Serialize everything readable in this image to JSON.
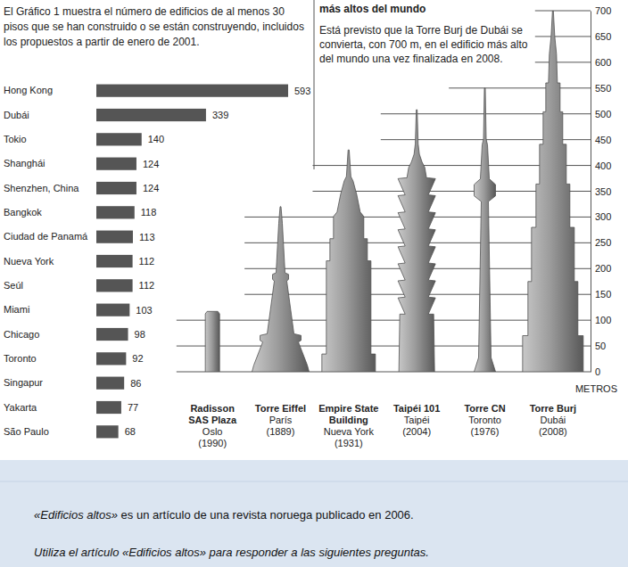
{
  "chart_data": [
    {
      "type": "bar",
      "orientation": "horizontal",
      "title": "El Gráfico 1 muestra el número de edificios de al menos 30 pisos que se han construido o se están construyendo, incluidos los propuestos a partir de enero de 2001.",
      "categories": [
        "Hong Kong",
        "Dubái",
        "Tokio",
        "Shanghái",
        "Shenzhen, China",
        "Bangkok",
        "Ciudad de Panamá",
        "Nueva York",
        "Seúl",
        "Miami",
        "Chicago",
        "Toronto",
        "Singapur",
        "Yakarta",
        "São Paulo"
      ],
      "values": [
        593,
        339,
        140,
        124,
        124,
        118,
        113,
        112,
        112,
        103,
        98,
        92,
        86,
        77,
        68
      ],
      "color": "#555555",
      "xlim": [
        0,
        593
      ],
      "data_labels": true,
      "tick_labels": "y"
    },
    {
      "type": "bar",
      "title": "más altos del mundo",
      "subtitle": "Está previsto que la Torre Burj de Dubái se convierta, con 700 m, en el edificio más alto del mundo una vez finalizada en 2008.",
      "categories": [
        "Radisson SAS Plaza",
        "Torre Eiffel",
        "Empire State Building",
        "Taipéi 101",
        "Torre CN",
        "Torre Burj"
      ],
      "category_cities": [
        "Oslo",
        "París",
        "Nueva York",
        "Taipéi",
        "Toronto",
        "Dubái"
      ],
      "category_years": [
        "(1990)",
        "(1889)",
        "(1931)",
        "(2004)",
        "(1976)",
        "(2008)"
      ],
      "values": [
        117,
        320,
        430,
        508,
        550,
        700
      ],
      "color": "#8c8c8c",
      "ylim": [
        0,
        700
      ],
      "yticks": [
        0,
        50,
        100,
        150,
        200,
        250,
        300,
        350,
        400,
        450,
        500,
        550,
        600,
        650,
        700
      ],
      "ylabel": "METROS",
      "grid": true
    }
  ],
  "footer": {
    "text_parts": [
      "«Edificios altos»",
      " es un artículo de una revista noruega publicado en 2006."
    ],
    "instruction": "Utiliza el artículo «Edificios altos» para responder a las siguientes preguntas."
  }
}
